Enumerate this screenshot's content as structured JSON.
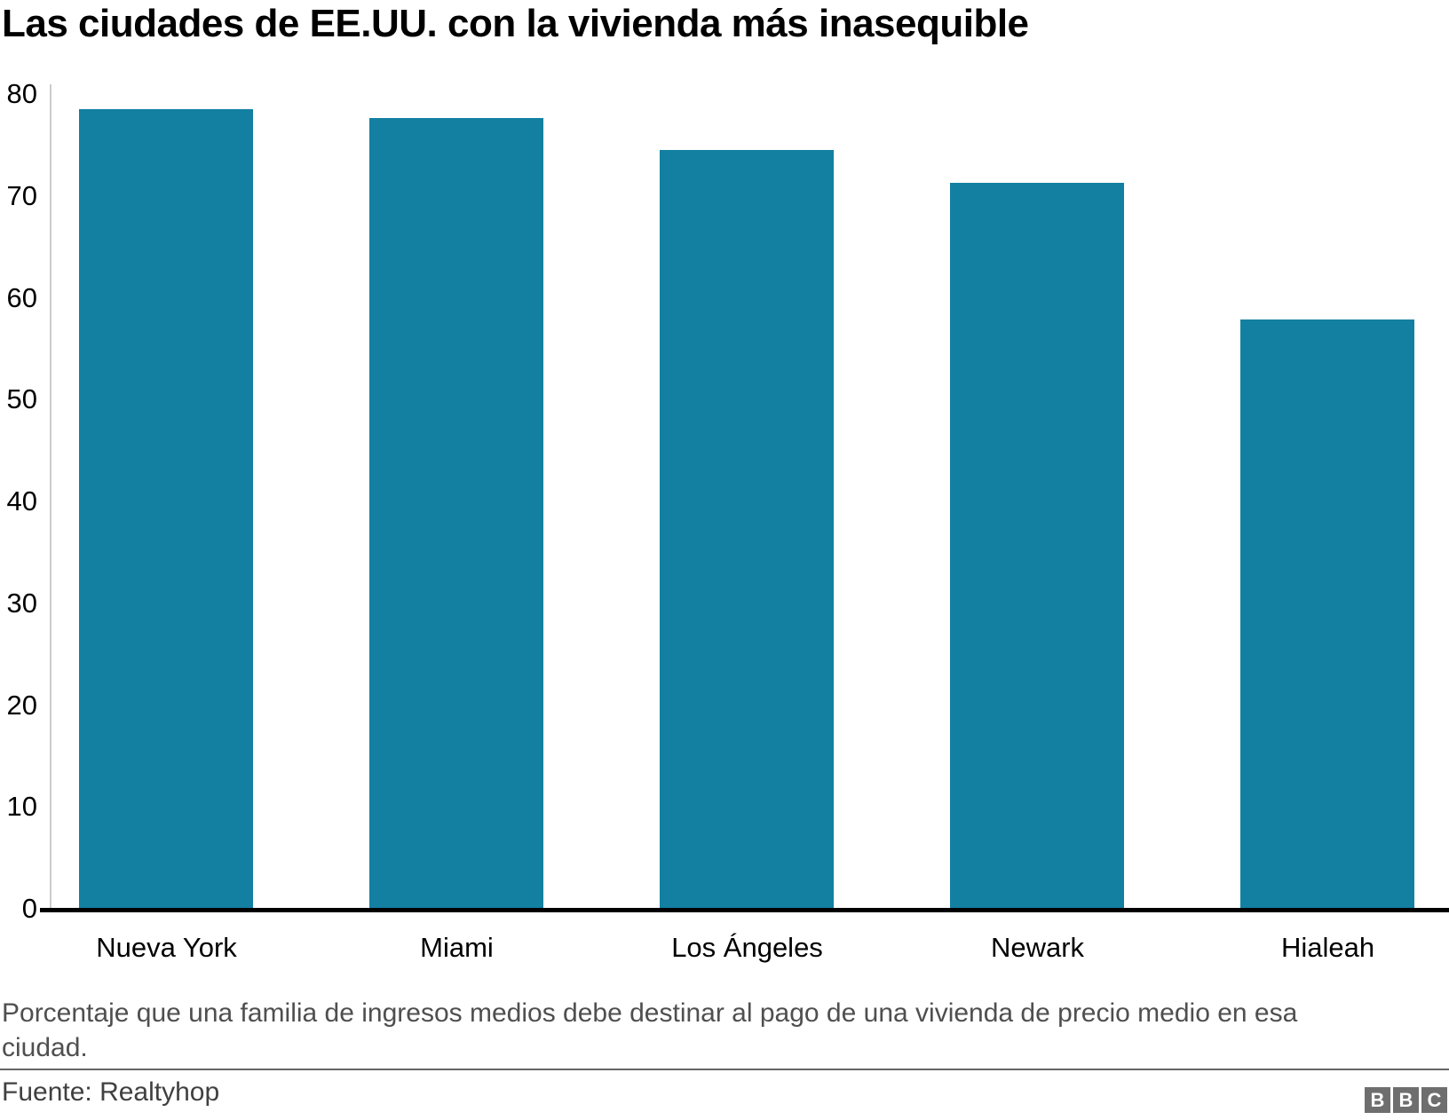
{
  "title": "Las ciudades de EE.UU. con la vivienda más inasequible",
  "chart_data": {
    "type": "bar",
    "categories": [
      "Nueva York",
      "Miami",
      "Los Ángeles",
      "Newark",
      "Hialeah"
    ],
    "values": [
      78.4,
      77.6,
      74.4,
      71.2,
      57.8
    ],
    "title": "Las ciudades de EE.UU. con la vivienda más inasequible",
    "xlabel": "",
    "ylabel": "",
    "ylim": [
      0,
      80
    ],
    "yticks": [
      0,
      10,
      20,
      30,
      40,
      50,
      60,
      70,
      80
    ],
    "bar_color": "#1380a1",
    "grid": false,
    "legend": false
  },
  "caption": "Porcentaje que una familia de ingresos medios debe destinar al pago de una vivienda de precio medio en esa ciudad.",
  "source": "Fuente: Realtyhop",
  "logo": {
    "letters": [
      "B",
      "B",
      "C"
    ],
    "color": "#6e6e6e"
  }
}
